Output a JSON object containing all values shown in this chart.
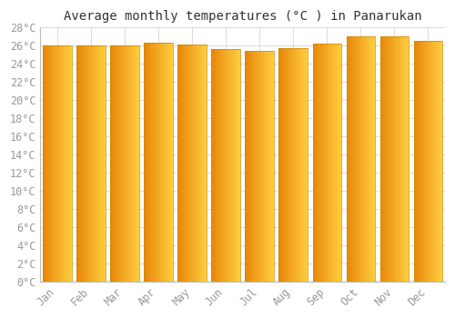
{
  "title": "Average monthly temperatures (°C ) in Panarukan",
  "months": [
    "Jan",
    "Feb",
    "Mar",
    "Apr",
    "May",
    "Jun",
    "Jul",
    "Aug",
    "Sep",
    "Oct",
    "Nov",
    "Dec"
  ],
  "values": [
    26.0,
    26.0,
    26.0,
    26.3,
    26.1,
    25.6,
    25.4,
    25.7,
    26.2,
    27.0,
    27.0,
    26.5
  ],
  "bar_color_left": "#E8870A",
  "bar_color_right": "#FFD040",
  "bar_color_mid": "#FFB020",
  "bar_edge_color": "#CC8800",
  "plot_bg_color": "#FFFFFF",
  "fig_bg_color": "#FFFFFF",
  "grid_color": "#DDDDDD",
  "ylim": [
    0,
    28
  ],
  "ytick_step": 2,
  "title_fontsize": 10,
  "tick_fontsize": 8.5,
  "tick_color": "#999999",
  "title_color": "#333333",
  "font_family": "monospace",
  "bar_width": 0.85
}
